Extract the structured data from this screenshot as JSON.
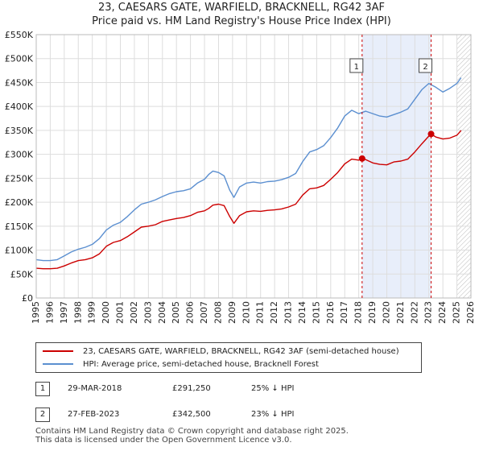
{
  "title_line1": "23, CAESARS GATE, WARFIELD, BRACKNELL, RG42 3AF",
  "title_line2": "Price paid vs. HM Land Registry's House Price Index (HPI)",
  "chart_data": {
    "type": "line",
    "xlim": [
      1995,
      2026
    ],
    "ylim": [
      0,
      550000
    ],
    "y_ticks": [
      0,
      50000,
      100000,
      150000,
      200000,
      250000,
      300000,
      350000,
      400000,
      450000,
      500000,
      550000
    ],
    "y_tick_labels": [
      "£0",
      "£50K",
      "£100K",
      "£150K",
      "£200K",
      "£250K",
      "£300K",
      "£350K",
      "£400K",
      "£450K",
      "£500K",
      "£550K"
    ],
    "x_ticks": [
      1995,
      1996,
      1997,
      1998,
      1999,
      2000,
      2001,
      2002,
      2003,
      2004,
      2005,
      2006,
      2007,
      2008,
      2009,
      2010,
      2011,
      2012,
      2013,
      2014,
      2015,
      2016,
      2017,
      2018,
      2019,
      2020,
      2021,
      2022,
      2023,
      2024,
      2025,
      2026
    ],
    "x_tick_labels": [
      "1995",
      "1996",
      "1997",
      "1998",
      "1999",
      "2000",
      "2001",
      "2002",
      "2003",
      "2004",
      "2005",
      "2006",
      "2007",
      "2008",
      "2009",
      "2010",
      "2011",
      "2012",
      "2013",
      "2014",
      "2015",
      "2016",
      "2017",
      "2018",
      "2019",
      "2020",
      "2021",
      "2022",
      "2023",
      "2024",
      "2025",
      "2026"
    ],
    "grid": true,
    "shaded_period": [
      2018.24,
      2023.16
    ],
    "hatched_from": 2025.0,
    "series": [
      {
        "name": "23, CAESARS GATE, WARFIELD, BRACKNELL, RG42 3AF (semi-detached house)",
        "color": "#cc0000",
        "x": [
          1995,
          1995.5,
          1996,
          1996.5,
          1997,
          1997.5,
          1998,
          1998.5,
          1999,
          1999.5,
          2000,
          2000.5,
          2001,
          2001.5,
          2002,
          2002.5,
          2003,
          2003.5,
          2004,
          2004.5,
          2005,
          2005.5,
          2006,
          2006.5,
          2007,
          2007.3,
          2007.6,
          2008,
          2008.4,
          2008.8,
          2009.1,
          2009.5,
          2010,
          2010.5,
          2011,
          2011.5,
          2012,
          2012.5,
          2013,
          2013.5,
          2014,
          2014.5,
          2015,
          2015.5,
          2016,
          2016.5,
          2017,
          2017.5,
          2018,
          2018.24,
          2018.5,
          2019,
          2019.5,
          2020,
          2020.5,
          2021,
          2021.5,
          2022,
          2022.5,
          2023,
          2023.16,
          2023.5,
          2024,
          2024.5,
          2025,
          2025.3
        ],
        "y": [
          62000,
          61000,
          61000,
          62000,
          67000,
          73000,
          78000,
          80000,
          84000,
          92000,
          108000,
          116000,
          120000,
          128000,
          138000,
          148000,
          150000,
          153000,
          160000,
          163000,
          166000,
          168000,
          172000,
          179000,
          182000,
          187000,
          194000,
          196000,
          193000,
          170000,
          156000,
          172000,
          180000,
          182000,
          181000,
          183000,
          184000,
          186000,
          190000,
          196000,
          215000,
          228000,
          230000,
          235000,
          248000,
          262000,
          280000,
          290000,
          288000,
          291250,
          289000,
          282000,
          279000,
          278000,
          284000,
          286000,
          290000,
          305000,
          322000,
          338000,
          342500,
          336000,
          332000,
          334000,
          340000,
          350000
        ]
      },
      {
        "name": "HPI: Average price, semi-detached house, Bracknell Forest",
        "color": "#5b8fd0",
        "x": [
          1995,
          1995.5,
          1996,
          1996.5,
          1997,
          1997.5,
          1998,
          1998.5,
          1999,
          1999.5,
          2000,
          2000.5,
          2001,
          2001.5,
          2002,
          2002.5,
          2003,
          2003.5,
          2004,
          2004.5,
          2005,
          2005.5,
          2006,
          2006.5,
          2007,
          2007.3,
          2007.6,
          2008,
          2008.4,
          2008.8,
          2009.1,
          2009.5,
          2010,
          2010.5,
          2011,
          2011.5,
          2012,
          2012.5,
          2013,
          2013.5,
          2014,
          2014.5,
          2015,
          2015.5,
          2016,
          2016.5,
          2017,
          2017.5,
          2018,
          2018.5,
          2019,
          2019.5,
          2020,
          2020.5,
          2021,
          2021.5,
          2022,
          2022.5,
          2023,
          2023.5,
          2024,
          2024.5,
          2025,
          2025.3
        ],
        "y": [
          80000,
          78000,
          78000,
          80000,
          88000,
          96000,
          102000,
          106000,
          112000,
          124000,
          142000,
          152000,
          158000,
          170000,
          184000,
          196000,
          200000,
          205000,
          212000,
          218000,
          222000,
          224000,
          228000,
          240000,
          248000,
          258000,
          265000,
          262000,
          255000,
          225000,
          210000,
          232000,
          240000,
          242000,
          240000,
          243000,
          244000,
          247000,
          252000,
          260000,
          285000,
          305000,
          310000,
          318000,
          335000,
          355000,
          380000,
          392000,
          385000,
          390000,
          385000,
          380000,
          378000,
          383000,
          388000,
          395000,
          415000,
          435000,
          448000,
          440000,
          430000,
          438000,
          448000,
          460000
        ]
      }
    ],
    "annotations": [
      {
        "label": "1",
        "x": 2018.24,
        "y": 291250
      },
      {
        "label": "2",
        "x": 2023.16,
        "y": 342500
      }
    ]
  },
  "legend": {
    "entries": [
      {
        "label": "23, CAESARS GATE, WARFIELD, BRACKNELL, RG42 3AF (semi-detached house)",
        "color": "#cc0000"
      },
      {
        "label": "HPI: Average price, semi-detached house, Bracknell Forest",
        "color": "#5b8fd0"
      }
    ]
  },
  "sales": [
    {
      "num": "1",
      "date": "29-MAR-2018",
      "price": "£291,250",
      "hpi": "25% ↓ HPI"
    },
    {
      "num": "2",
      "date": "27-FEB-2023",
      "price": "£342,500",
      "hpi": "23% ↓ HPI"
    }
  ],
  "footer_line1": "Contains HM Land Registry data © Crown copyright and database right 2025.",
  "footer_line2": "This data is licensed under the Open Government Licence v3.0."
}
